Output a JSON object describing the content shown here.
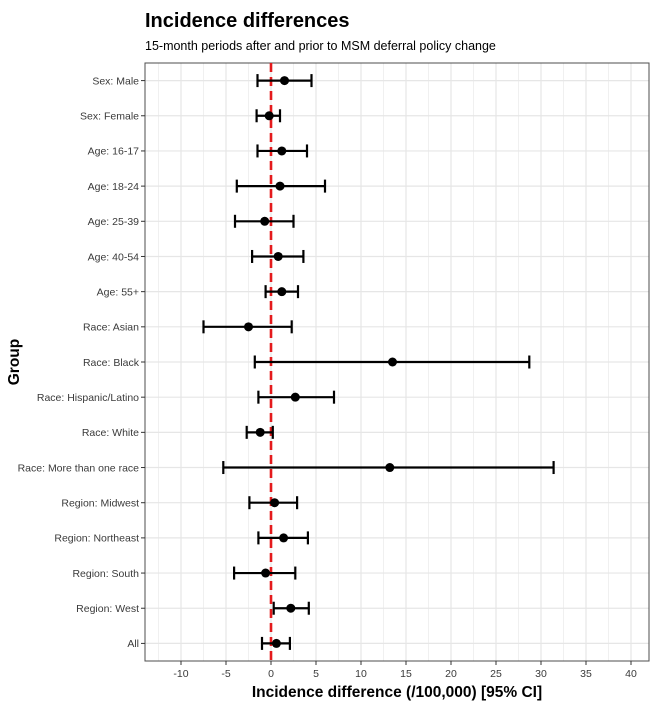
{
  "chart_data": {
    "type": "forest",
    "title": "Incidence differences",
    "subtitle": "15-month periods after and prior to MSM deferral policy change",
    "xlabel": "Incidence difference (/100,000) [95% CI]",
    "ylabel": "Group",
    "xlim": [
      -14,
      42
    ],
    "xticks": [
      -10,
      -5,
      0,
      5,
      10,
      15,
      20,
      25,
      30,
      35,
      40
    ],
    "reference_line": {
      "x": 0,
      "style": "dashed",
      "color": "#e41a1c"
    },
    "grid": true,
    "categories": [
      "Sex: Male",
      "Sex: Female",
      "Age: 16-17",
      "Age: 18-24",
      "Age: 25-39",
      "Age: 40-54",
      "Age: 55+",
      "Race: Asian",
      "Race: Black",
      "Race: Hispanic/Latino",
      "Race: White",
      "Race: More than one race",
      "Region: Midwest",
      "Region: Northeast",
      "Region: South",
      "Region: West",
      "All"
    ],
    "estimates": [
      1.5,
      -0.2,
      1.2,
      1.0,
      -0.7,
      0.8,
      1.2,
      -2.5,
      13.5,
      2.7,
      -1.2,
      13.2,
      0.4,
      1.4,
      -0.6,
      2.2,
      0.6
    ],
    "lower": [
      -1.5,
      -1.6,
      -1.5,
      -3.8,
      -4.0,
      -2.1,
      -0.6,
      -7.5,
      -1.8,
      -1.4,
      -2.7,
      -5.3,
      -2.4,
      -1.4,
      -4.1,
      0.3,
      -1.0
    ],
    "upper": [
      4.5,
      1.0,
      4.0,
      6.0,
      2.5,
      3.6,
      3.0,
      2.3,
      28.7,
      7.0,
      0.2,
      31.4,
      2.9,
      4.1,
      2.7,
      4.2,
      2.1
    ]
  },
  "colors": {
    "point": "#000000",
    "reference": "#e41a1c",
    "grid": "#e6e6e6",
    "panel_border": "#4d4d4d"
  }
}
